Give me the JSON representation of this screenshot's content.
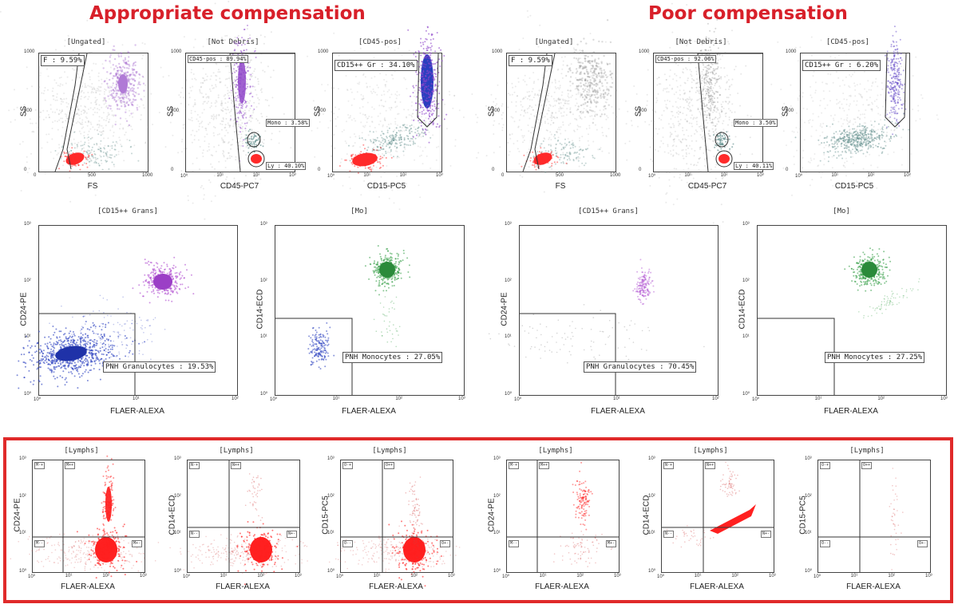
{
  "headings": {
    "left": "Appropriate compensation",
    "right": "Poor compensation"
  },
  "colors": {
    "accent": "#d8202a",
    "purple": "#8e44c9",
    "red": "#ff2020",
    "blue": "#2a3fbf",
    "green": "#2e9a40",
    "teal": "#5b8a88"
  },
  "rows": {
    "row1": [
      {
        "title": "[Ungated]",
        "xlabel": "FS",
        "ylabel": "SS",
        "xticks": [
          "0",
          "500",
          "1000"
        ],
        "yticks": [
          "1000",
          "500",
          "0"
        ],
        "gates": [
          "F : 9.59%"
        ]
      },
      {
        "title": "[Not Debris]",
        "xlabel": "CD45-PC7",
        "ylabel": "SS",
        "xticks": [
          "10⁰",
          "10¹",
          "10²",
          "10³"
        ],
        "yticks": [
          "1000",
          "500",
          "0"
        ],
        "gates": [
          "CD45-pos : 89.94%",
          "Mono : 3.58%",
          "Ly : 40.10%"
        ]
      },
      {
        "title": "[CD45-pos]",
        "xlabel": "CD15-PC5",
        "ylabel": "SS",
        "xticks": [
          "10⁰",
          "10¹",
          "10²",
          "10³"
        ],
        "yticks": [
          "1000",
          "500",
          "0"
        ],
        "gates": [
          "CD15++ Gr : 34.10%"
        ]
      },
      {
        "title": "[Ungated]",
        "xlabel": "FS",
        "ylabel": "SS",
        "xticks": [
          "0",
          "500",
          "1000"
        ],
        "yticks": [
          "1000",
          "500",
          "0"
        ],
        "gates": [
          "F : 9.59%"
        ]
      },
      {
        "title": "[Not Debris]",
        "xlabel": "CD45-PC7",
        "ylabel": "SS",
        "xticks": [
          "10⁰",
          "10¹",
          "10²",
          "10³"
        ],
        "yticks": [
          "1000",
          "500",
          "0"
        ],
        "gates": [
          "CD45-pos : 92.06%",
          "Mono : 3.50%",
          "Ly : 40.11%"
        ]
      },
      {
        "title": "[CD45-pos]",
        "xlabel": "CD15-PC5",
        "ylabel": "SS",
        "xticks": [
          "10⁰",
          "10¹",
          "10²",
          "10³"
        ],
        "yticks": [
          "1000",
          "500",
          "0"
        ],
        "gates": [
          "CD15++ Gr : 6.20%"
        ]
      }
    ],
    "row2": [
      {
        "title": "[CD15++ Grans]",
        "xlabel": "FLAER-ALEXA",
        "ylabel": "CD24-PE",
        "xticks": [
          "10⁰",
          "10¹",
          "10²"
        ],
        "yticks": [
          "10³",
          "10²",
          "10¹",
          "10⁰"
        ],
        "gate": "PNH Granulocytes : 19.53%"
      },
      {
        "title": "[Mo]",
        "xlabel": "FLAER-ALEXA",
        "ylabel": "CD14-ECD",
        "xticks": [
          "10⁰",
          "10¹",
          "10²",
          "10³"
        ],
        "yticks": [
          "10³",
          "10²",
          "10¹",
          "10⁰"
        ],
        "gate": "PNH Monocytes : 27.05%"
      },
      {
        "title": "[CD15++ Grans]",
        "xlabel": "FLAER-ALEXA",
        "ylabel": "CD24-PE",
        "xticks": [
          "10⁰",
          "10¹",
          "10²"
        ],
        "yticks": [
          "10³",
          "10²",
          "10¹",
          "10⁰"
        ],
        "gate": "PNH Granulocytes : 70.45%"
      },
      {
        "title": "[Mo]",
        "xlabel": "FLAER-ALEXA",
        "ylabel": "CD14-ECD",
        "xticks": [
          "10⁰",
          "10¹",
          "10²",
          "10³"
        ],
        "yticks": [
          "10³",
          "10²",
          "10¹",
          "10⁰"
        ],
        "gate": "PNH Monocytes : 27.25%"
      }
    ],
    "row3": [
      {
        "title": "[Lymphs]",
        "xlabel": "FLAER-ALEXA",
        "ylabel": "CD24-PE",
        "q": [
          "M-+",
          "M++",
          "M--",
          "M+-"
        ]
      },
      {
        "title": "[Lymphs]",
        "xlabel": "FLAER-ALEXA",
        "ylabel": "CD14-ECD",
        "q": [
          "N-+",
          "N++",
          "N--",
          "N+-"
        ]
      },
      {
        "title": "[Lymphs]",
        "xlabel": "FLAER-ALEXA",
        "ylabel": "CD15-PC5",
        "q": [
          "O-+",
          "O++",
          "O--",
          "O+-"
        ]
      },
      {
        "title": "[Lymphs]",
        "xlabel": "FLAER-ALEXA",
        "ylabel": "CD24-PE",
        "q": [
          "M-+",
          "M++",
          "M--",
          "M+-"
        ]
      },
      {
        "title": "[Lymphs]",
        "xlabel": "FLAER-ALEXA",
        "ylabel": "CD14-ECD",
        "q": [
          "N-+",
          "N++",
          "N--",
          "N+-"
        ]
      },
      {
        "title": "[Lymphs]",
        "xlabel": "FLAER-ALEXA",
        "ylabel": "CD15-PC5",
        "q": [
          "O-+",
          "O++",
          "O--",
          "O+-"
        ]
      }
    ]
  },
  "chart_data": {
    "type": "scatter",
    "figure": "flow cytometry dot plots (compensation comparison)",
    "row3_ticks": {
      "x": [
        "10⁰",
        "10¹",
        "10²",
        "10³"
      ],
      "y": [
        "10³",
        "10²",
        "10¹",
        "10⁰"
      ]
    }
  }
}
